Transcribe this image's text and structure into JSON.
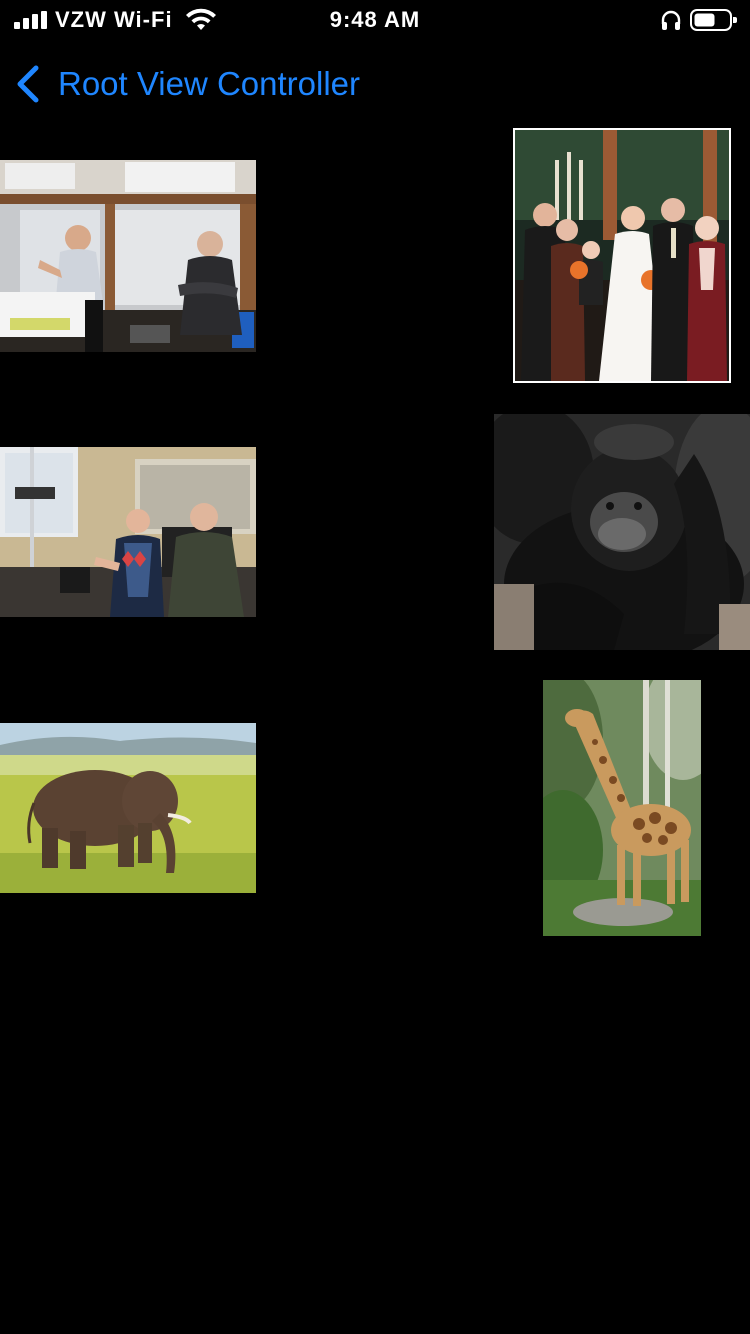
{
  "status_bar": {
    "carrier": "VZW Wi-Fi",
    "time": "9:48 AM",
    "icons": [
      "signal-icon",
      "wifi-icon",
      "headphones-icon",
      "battery-icon"
    ]
  },
  "nav": {
    "back_label": "Root View Controller",
    "tint_color": "#1f86ff",
    "back_icon": "chevron-left-icon"
  },
  "photos": [
    {
      "name": "lab-meeting-photo"
    },
    {
      "name": "wedding-group-photo",
      "selected": true
    },
    {
      "name": "lab-discussion-photo"
    },
    {
      "name": "chimpanzee-photo"
    },
    {
      "name": "elephant-photo"
    },
    {
      "name": "giraffe-photo"
    }
  ]
}
